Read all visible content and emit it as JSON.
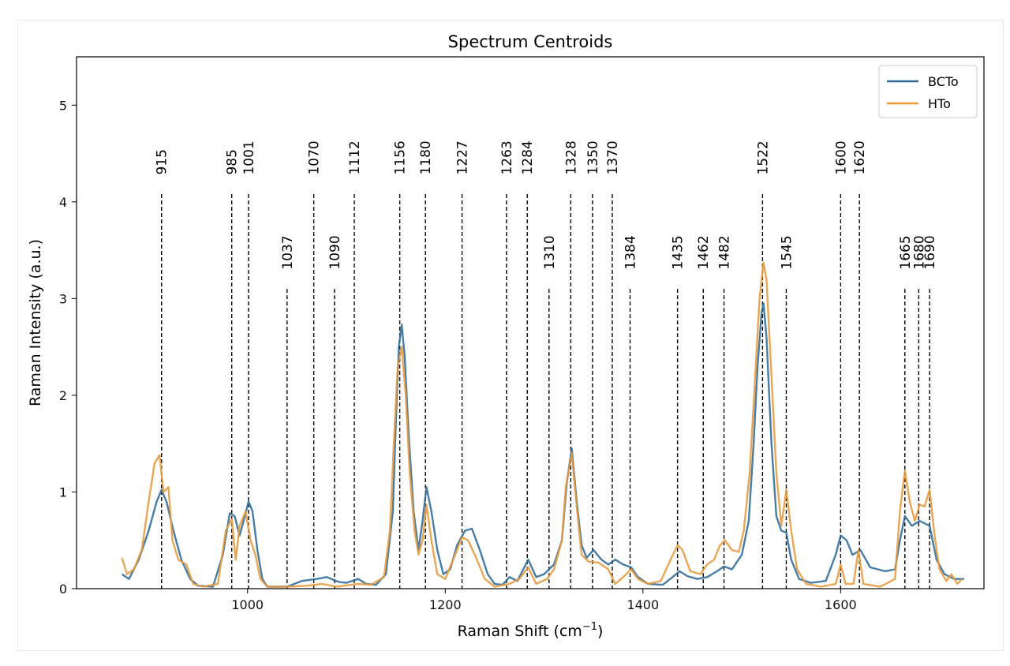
{
  "chart_data": {
    "type": "line",
    "title": "Spectrum Centroids",
    "xlabel": "Raman Shift (cm",
    "xlabel_sup": "−1",
    "xlabel_close": ")",
    "ylabel": "Raman Intensity (a.u.)",
    "xlim": [
      827,
      1745
    ],
    "ylim": [
      0,
      5.5
    ],
    "xticks": [
      1000,
      1200,
      1400,
      1600
    ],
    "yticks": [
      0,
      1,
      2,
      3,
      4,
      5
    ],
    "grid": false,
    "legend_position": "top-right",
    "series": [
      {
        "name": "BCTo",
        "color": "#2f6b9a",
        "points": [
          [
            873,
            0.15
          ],
          [
            880,
            0.1
          ],
          [
            890,
            0.3
          ],
          [
            900,
            0.6
          ],
          [
            908,
            0.9
          ],
          [
            913,
            1.02
          ],
          [
            918,
            0.9
          ],
          [
            925,
            0.6
          ],
          [
            933,
            0.3
          ],
          [
            942,
            0.1
          ],
          [
            950,
            0.03
          ],
          [
            965,
            0.02
          ],
          [
            975,
            0.35
          ],
          [
            982,
            0.78
          ],
          [
            987,
            0.75
          ],
          [
            992,
            0.55
          ],
          [
            996,
            0.7
          ],
          [
            1001,
            0.9
          ],
          [
            1005,
            0.8
          ],
          [
            1010,
            0.4
          ],
          [
            1015,
            0.1
          ],
          [
            1020,
            0.02
          ],
          [
            1040,
            0.02
          ],
          [
            1055,
            0.08
          ],
          [
            1070,
            0.1
          ],
          [
            1080,
            0.12
          ],
          [
            1092,
            0.07
          ],
          [
            1100,
            0.06
          ],
          [
            1112,
            0.1
          ],
          [
            1120,
            0.05
          ],
          [
            1130,
            0.04
          ],
          [
            1140,
            0.15
          ],
          [
            1147,
            0.8
          ],
          [
            1150,
            1.7
          ],
          [
            1153,
            2.5
          ],
          [
            1156,
            2.73
          ],
          [
            1159,
            2.4
          ],
          [
            1163,
            1.6
          ],
          [
            1168,
            0.8
          ],
          [
            1173,
            0.4
          ],
          [
            1177,
            0.7
          ],
          [
            1181,
            1.05
          ],
          [
            1186,
            0.8
          ],
          [
            1192,
            0.4
          ],
          [
            1198,
            0.15
          ],
          [
            1205,
            0.2
          ],
          [
            1212,
            0.45
          ],
          [
            1220,
            0.6
          ],
          [
            1227,
            0.62
          ],
          [
            1235,
            0.4
          ],
          [
            1243,
            0.15
          ],
          [
            1250,
            0.05
          ],
          [
            1258,
            0.04
          ],
          [
            1265,
            0.12
          ],
          [
            1273,
            0.08
          ],
          [
            1284,
            0.3
          ],
          [
            1292,
            0.12
          ],
          [
            1300,
            0.15
          ],
          [
            1310,
            0.25
          ],
          [
            1318,
            0.5
          ],
          [
            1323,
            1.1
          ],
          [
            1328,
            1.45
          ],
          [
            1333,
            0.9
          ],
          [
            1338,
            0.45
          ],
          [
            1343,
            0.32
          ],
          [
            1350,
            0.4
          ],
          [
            1358,
            0.3
          ],
          [
            1365,
            0.25
          ],
          [
            1372,
            0.3
          ],
          [
            1380,
            0.25
          ],
          [
            1388,
            0.22
          ],
          [
            1395,
            0.12
          ],
          [
            1405,
            0.05
          ],
          [
            1420,
            0.04
          ],
          [
            1430,
            0.12
          ],
          [
            1437,
            0.18
          ],
          [
            1445,
            0.13
          ],
          [
            1455,
            0.1
          ],
          [
            1465,
            0.12
          ],
          [
            1475,
            0.18
          ],
          [
            1482,
            0.23
          ],
          [
            1490,
            0.2
          ],
          [
            1500,
            0.35
          ],
          [
            1507,
            0.7
          ],
          [
            1512,
            1.5
          ],
          [
            1516,
            2.3
          ],
          [
            1520,
            2.85
          ],
          [
            1522,
            2.95
          ],
          [
            1525,
            2.6
          ],
          [
            1530,
            1.5
          ],
          [
            1535,
            0.75
          ],
          [
            1540,
            0.6
          ],
          [
            1545,
            0.58
          ],
          [
            1550,
            0.3
          ],
          [
            1558,
            0.1
          ],
          [
            1570,
            0.06
          ],
          [
            1585,
            0.08
          ],
          [
            1595,
            0.35
          ],
          [
            1600,
            0.55
          ],
          [
            1606,
            0.5
          ],
          [
            1612,
            0.35
          ],
          [
            1620,
            0.4
          ],
          [
            1630,
            0.22
          ],
          [
            1645,
            0.18
          ],
          [
            1655,
            0.2
          ],
          [
            1660,
            0.5
          ],
          [
            1665,
            0.75
          ],
          [
            1672,
            0.65
          ],
          [
            1680,
            0.7
          ],
          [
            1690,
            0.65
          ],
          [
            1697,
            0.3
          ],
          [
            1705,
            0.15
          ],
          [
            1715,
            0.1
          ],
          [
            1725,
            0.1
          ]
        ]
      },
      {
        "name": "HTo",
        "color": "#e69a3c",
        "points": [
          [
            873,
            0.32
          ],
          [
            878,
            0.15
          ],
          [
            885,
            0.2
          ],
          [
            893,
            0.4
          ],
          [
            900,
            0.9
          ],
          [
            906,
            1.3
          ],
          [
            911,
            1.38
          ],
          [
            915,
            1.0
          ],
          [
            920,
            1.05
          ],
          [
            924,
            0.5
          ],
          [
            930,
            0.3
          ],
          [
            938,
            0.25
          ],
          [
            945,
            0.05
          ],
          [
            955,
            0.02
          ],
          [
            970,
            0.05
          ],
          [
            978,
            0.6
          ],
          [
            984,
            0.72
          ],
          [
            988,
            0.3
          ],
          [
            992,
            0.65
          ],
          [
            998,
            0.8
          ],
          [
            1003,
            0.5
          ],
          [
            1008,
            0.35
          ],
          [
            1013,
            0.1
          ],
          [
            1020,
            0.02
          ],
          [
            1040,
            0.02
          ],
          [
            1060,
            0.03
          ],
          [
            1075,
            0.05
          ],
          [
            1090,
            0.02
          ],
          [
            1112,
            0.05
          ],
          [
            1125,
            0.04
          ],
          [
            1138,
            0.12
          ],
          [
            1144,
            0.6
          ],
          [
            1148,
            1.5
          ],
          [
            1152,
            2.3
          ],
          [
            1156,
            2.5
          ],
          [
            1160,
            2.0
          ],
          [
            1164,
            1.2
          ],
          [
            1169,
            0.6
          ],
          [
            1173,
            0.35
          ],
          [
            1177,
            0.5
          ],
          [
            1181,
            0.87
          ],
          [
            1186,
            0.5
          ],
          [
            1192,
            0.15
          ],
          [
            1200,
            0.1
          ],
          [
            1210,
            0.35
          ],
          [
            1217,
            0.53
          ],
          [
            1223,
            0.5
          ],
          [
            1230,
            0.35
          ],
          [
            1240,
            0.1
          ],
          [
            1250,
            0.02
          ],
          [
            1265,
            0.05
          ],
          [
            1275,
            0.1
          ],
          [
            1284,
            0.22
          ],
          [
            1292,
            0.05
          ],
          [
            1303,
            0.1
          ],
          [
            1310,
            0.2
          ],
          [
            1318,
            0.5
          ],
          [
            1322,
            1.05
          ],
          [
            1328,
            1.4
          ],
          [
            1333,
            0.85
          ],
          [
            1338,
            0.35
          ],
          [
            1345,
            0.28
          ],
          [
            1355,
            0.27
          ],
          [
            1365,
            0.2
          ],
          [
            1372,
            0.05
          ],
          [
            1380,
            0.12
          ],
          [
            1388,
            0.2
          ],
          [
            1395,
            0.1
          ],
          [
            1405,
            0.05
          ],
          [
            1418,
            0.08
          ],
          [
            1428,
            0.3
          ],
          [
            1435,
            0.45
          ],
          [
            1440,
            0.4
          ],
          [
            1448,
            0.18
          ],
          [
            1458,
            0.15
          ],
          [
            1465,
            0.25
          ],
          [
            1472,
            0.3
          ],
          [
            1478,
            0.45
          ],
          [
            1483,
            0.5
          ],
          [
            1490,
            0.4
          ],
          [
            1497,
            0.38
          ],
          [
            1502,
            0.6
          ],
          [
            1508,
            1.2
          ],
          [
            1513,
            2.1
          ],
          [
            1518,
            3.0
          ],
          [
            1522,
            3.37
          ],
          [
            1525,
            3.2
          ],
          [
            1530,
            2.2
          ],
          [
            1535,
            1.2
          ],
          [
            1540,
            0.65
          ],
          [
            1545,
            1.02
          ],
          [
            1550,
            0.6
          ],
          [
            1556,
            0.2
          ],
          [
            1565,
            0.05
          ],
          [
            1580,
            0.02
          ],
          [
            1595,
            0.05
          ],
          [
            1600,
            0.25
          ],
          [
            1605,
            0.05
          ],
          [
            1613,
            0.05
          ],
          [
            1618,
            0.4
          ],
          [
            1623,
            0.05
          ],
          [
            1640,
            0.02
          ],
          [
            1655,
            0.1
          ],
          [
            1660,
            0.8
          ],
          [
            1665,
            1.22
          ],
          [
            1670,
            0.9
          ],
          [
            1675,
            0.7
          ],
          [
            1680,
            0.87
          ],
          [
            1685,
            0.85
          ],
          [
            1690,
            1.02
          ],
          [
            1695,
            0.55
          ],
          [
            1700,
            0.2
          ],
          [
            1707,
            0.08
          ],
          [
            1712,
            0.15
          ],
          [
            1718,
            0.05
          ],
          [
            1723,
            0.1
          ]
        ]
      }
    ],
    "peaks": [
      {
        "label": "915",
        "x": 913,
        "line_top": 4.08,
        "label_y": 4.28
      },
      {
        "label": "985",
        "x": 984,
        "line_top": 4.08,
        "label_y": 4.28
      },
      {
        "label": "1001",
        "x": 1001,
        "line_top": 4.08,
        "label_y": 4.28
      },
      {
        "label": "1037",
        "x": 1040,
        "line_top": 3.1,
        "label_y": 3.3
      },
      {
        "label": "1070",
        "x": 1067,
        "line_top": 4.08,
        "label_y": 4.28
      },
      {
        "label": "1090",
        "x": 1088,
        "line_top": 3.1,
        "label_y": 3.3
      },
      {
        "label": "1112",
        "x": 1108,
        "line_top": 4.08,
        "label_y": 4.28
      },
      {
        "label": "1156",
        "x": 1154,
        "line_top": 4.08,
        "label_y": 4.28
      },
      {
        "label": "1180",
        "x": 1180,
        "line_top": 4.08,
        "label_y": 4.28
      },
      {
        "label": "1227",
        "x": 1217,
        "line_top": 4.08,
        "label_y": 4.28
      },
      {
        "label": "1263",
        "x": 1262,
        "line_top": 4.08,
        "label_y": 4.28
      },
      {
        "label": "1284",
        "x": 1283,
        "line_top": 4.08,
        "label_y": 4.28
      },
      {
        "label": "1310",
        "x": 1305,
        "line_top": 3.1,
        "label_y": 3.3
      },
      {
        "label": "1328",
        "x": 1327,
        "line_top": 4.08,
        "label_y": 4.28
      },
      {
        "label": "1350",
        "x": 1349,
        "line_top": 4.08,
        "label_y": 4.28
      },
      {
        "label": "1370",
        "x": 1369,
        "line_top": 4.08,
        "label_y": 4.28
      },
      {
        "label": "1384",
        "x": 1387,
        "line_top": 3.1,
        "label_y": 3.3
      },
      {
        "label": "1435",
        "x": 1435,
        "line_top": 3.1,
        "label_y": 3.3
      },
      {
        "label": "1462",
        "x": 1461,
        "line_top": 3.1,
        "label_y": 3.3
      },
      {
        "label": "1482",
        "x": 1482,
        "line_top": 3.1,
        "label_y": 3.3
      },
      {
        "label": "1522",
        "x": 1521,
        "line_top": 4.08,
        "label_y": 4.28
      },
      {
        "label": "1545",
        "x": 1545,
        "line_top": 3.1,
        "label_y": 3.3
      },
      {
        "label": "1600",
        "x": 1600,
        "line_top": 4.08,
        "label_y": 4.28
      },
      {
        "label": "1620",
        "x": 1619,
        "line_top": 4.08,
        "label_y": 4.28
      },
      {
        "label": "1665",
        "x": 1665,
        "line_top": 3.1,
        "label_y": 3.3
      },
      {
        "label": "1680",
        "x": 1679,
        "line_top": 3.1,
        "label_y": 3.3
      },
      {
        "label": "1690",
        "x": 1690,
        "line_top": 3.1,
        "label_y": 3.3
      }
    ]
  }
}
